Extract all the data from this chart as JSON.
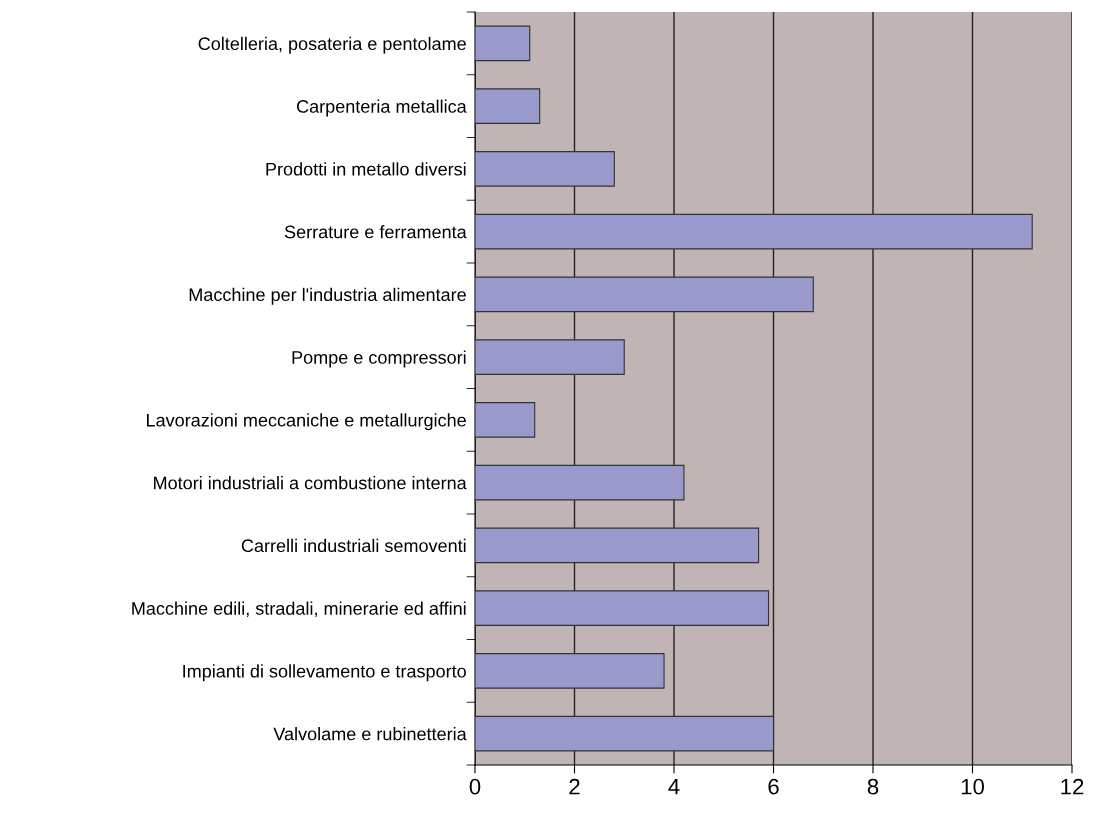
{
  "chart_data": {
    "type": "bar",
    "orientation": "horizontal",
    "categories": [
      "Coltelleria, posateria e pentolame",
      "Carpenteria metallica",
      "Prodotti in metallo diversi",
      "Serrature e ferramenta",
      "Macchine per l'industria alimentare",
      "Pompe e compressori",
      "Lavorazioni meccaniche e metallurgiche",
      "Motori industriali a combustione interna",
      "Carrelli industriali semoventi",
      "Macchine edili, stradali, minerarie ed affini",
      "Impianti di sollevamento e trasporto",
      "Valvolame e rubinetteria"
    ],
    "values": [
      1.1,
      1.3,
      2.8,
      11.2,
      6.8,
      3.0,
      1.2,
      4.2,
      5.7,
      5.9,
      3.8,
      6.0
    ],
    "color": "#9999cc",
    "xlim": [
      0,
      12
    ],
    "xticks": [
      0,
      2,
      4,
      6,
      8,
      10,
      12
    ],
    "grid": "x"
  }
}
